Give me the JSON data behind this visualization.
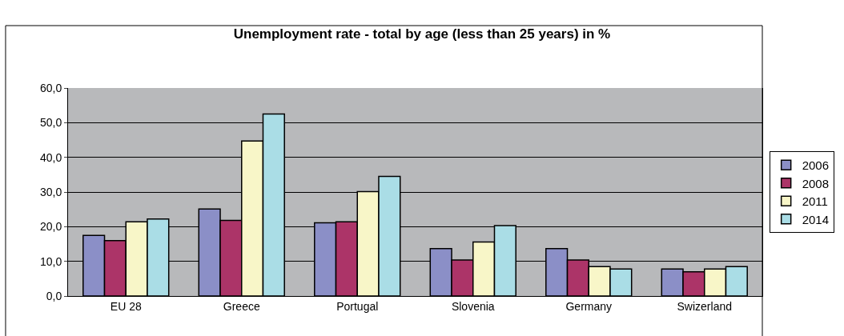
{
  "chart_data": {
    "type": "bar",
    "title": "Unemployment rate - total by age (less than 25 years) in %",
    "categories": [
      "EU 28",
      "Greece",
      "Portugal",
      "Slovenia",
      "Germany",
      "Swizerland"
    ],
    "series": [
      {
        "name": "2006",
        "color": "#8b8fc7",
        "values": [
          17.5,
          25.1,
          21.1,
          13.7,
          13.7,
          7.8
        ]
      },
      {
        "name": "2008",
        "color": "#ac3468",
        "values": [
          16.0,
          21.8,
          21.4,
          10.4,
          10.4,
          7.0
        ]
      },
      {
        "name": "2011",
        "color": "#f8f6c8",
        "values": [
          21.4,
          44.7,
          30.1,
          15.6,
          8.5,
          7.8
        ]
      },
      {
        "name": "2014",
        "color": "#aadde6",
        "values": [
          22.2,
          52.5,
          34.5,
          20.3,
          7.8,
          8.5
        ]
      }
    ],
    "ylim": [
      0,
      60
    ],
    "yticks": [
      {
        "value": 0,
        "label": "0,0"
      },
      {
        "value": 10,
        "label": "10,0"
      },
      {
        "value": 20,
        "label": "20,0"
      },
      {
        "value": 30,
        "label": "30,0"
      },
      {
        "value": 40,
        "label": "40,0"
      },
      {
        "value": 50,
        "label": "50,0"
      },
      {
        "value": 60,
        "label": "60,0"
      }
    ],
    "grid": "y",
    "legend": "right"
  }
}
